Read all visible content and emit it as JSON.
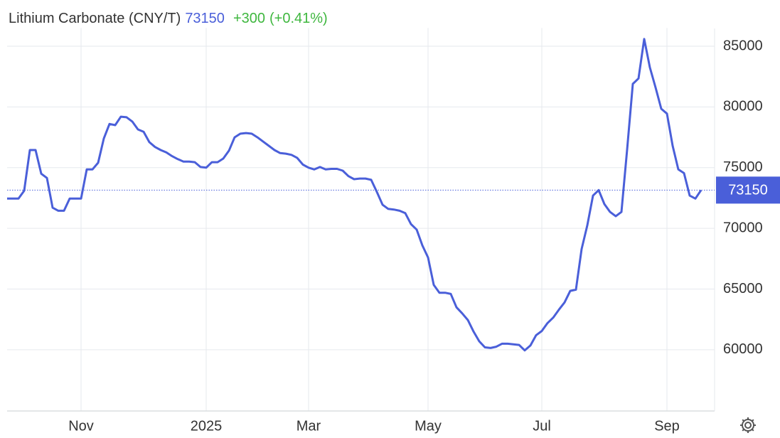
{
  "chart_data": {
    "type": "line",
    "title": "Lithium Carbonate (CNY/T)",
    "price": 73150,
    "change": {
      "value": 300,
      "label": "+300"
    },
    "change_pct": {
      "value": 0.41,
      "label": "(+0.41%)"
    },
    "categories": [
      null,
      null,
      null,
      null,
      null,
      null,
      null,
      null,
      null,
      null,
      null,
      null,
      null,
      "Nov",
      null,
      null,
      null,
      null,
      null,
      null,
      null,
      null,
      null,
      null,
      null,
      null,
      null,
      null,
      null,
      null,
      null,
      null,
      null,
      null,
      null,
      "2025",
      null,
      null,
      null,
      null,
      null,
      null,
      null,
      null,
      null,
      null,
      null,
      null,
      null,
      null,
      null,
      null,
      null,
      "Mar",
      null,
      null,
      null,
      null,
      null,
      null,
      null,
      null,
      null,
      null,
      null,
      null,
      null,
      null,
      null,
      null,
      null,
      null,
      null,
      null,
      "May",
      null,
      null,
      null,
      null,
      null,
      null,
      null,
      null,
      null,
      null,
      null,
      null,
      null,
      null,
      null,
      null,
      null,
      null,
      null,
      "Jul",
      null,
      null,
      null,
      null,
      null,
      null,
      null,
      null,
      null,
      null,
      null,
      null,
      null,
      null,
      null,
      null,
      null,
      null,
      null,
      null,
      null,
      "Sep",
      null,
      null,
      null,
      null,
      null,
      null
    ],
    "series": [
      {
        "name": "Lithium Carbonate",
        "color": "#4a5fd9",
        "values": [
          72450,
          72450,
          72450,
          73100,
          76450,
          76450,
          74500,
          74150,
          71700,
          71450,
          71450,
          72450,
          72450,
          72450,
          74850,
          74850,
          75400,
          77400,
          78600,
          78500,
          79200,
          79150,
          78800,
          78150,
          77950,
          77100,
          76700,
          76450,
          76250,
          75950,
          75700,
          75500,
          75500,
          75450,
          75050,
          75000,
          75450,
          75450,
          75750,
          76400,
          77500,
          77800,
          77850,
          77800,
          77500,
          77150,
          76800,
          76450,
          76200,
          76150,
          76050,
          75800,
          75250,
          75000,
          74850,
          75050,
          74850,
          74900,
          74900,
          74750,
          74300,
          74050,
          74100,
          74100,
          74000,
          73000,
          71950,
          71600,
          71550,
          71450,
          71250,
          70350,
          69900,
          68600,
          67600,
          65350,
          64700,
          64700,
          64600,
          63500,
          63000,
          62450,
          61500,
          60700,
          60200,
          60150,
          60250,
          60500,
          60500,
          60450,
          60400,
          59950,
          60350,
          61200,
          61550,
          62200,
          62650,
          63300,
          63900,
          64850,
          64950,
          68300,
          70250,
          72700,
          73150,
          72000,
          71350,
          71000,
          71350,
          76500,
          81900,
          82350,
          85600,
          83250,
          81600,
          79850,
          79450,
          76800,
          74850,
          74550,
          72700,
          72450,
          73150
        ]
      }
    ],
    "ylim": [
      55000,
      86500
    ],
    "yticks": [
      60000,
      65000,
      70000,
      75000,
      80000,
      85000
    ],
    "grid": true
  }
}
